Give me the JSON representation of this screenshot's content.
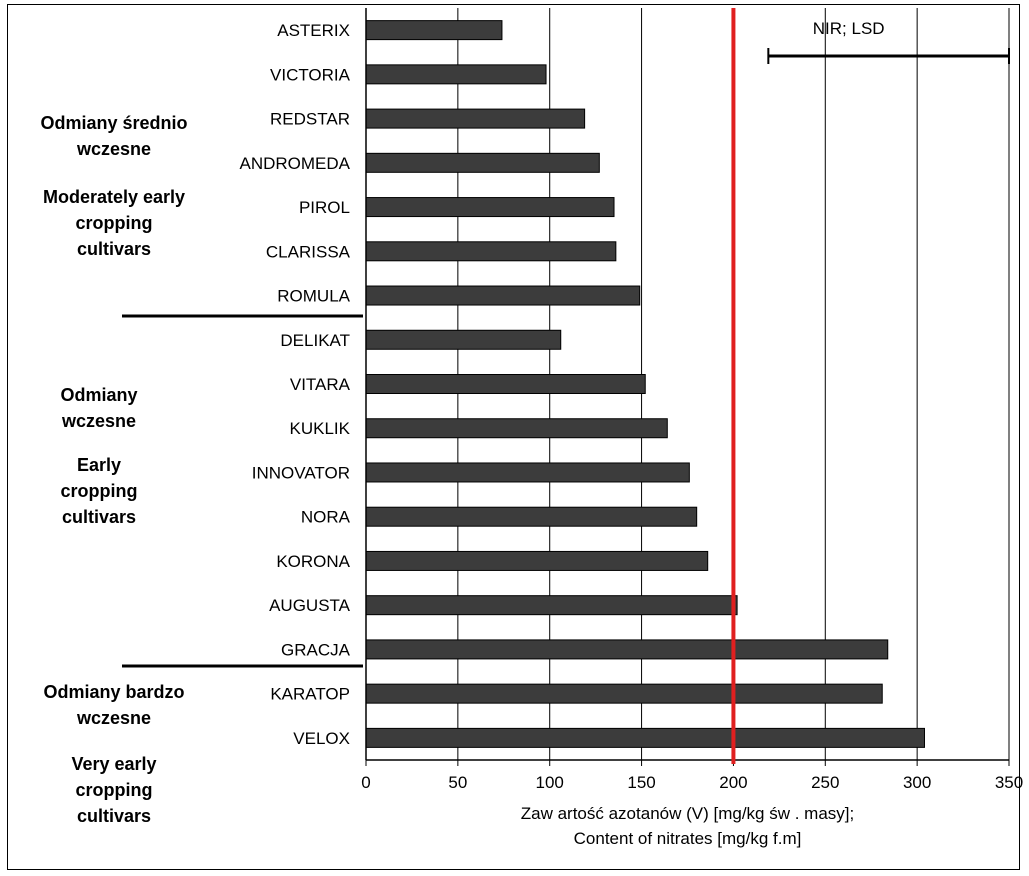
{
  "chart_data": {
    "type": "bar",
    "orientation": "horizontal",
    "categories": [
      "ASTERIX",
      "VICTORIA",
      "REDSTAR",
      "ANDROMEDA",
      "PIROL",
      "CLARISSA",
      "ROMULA",
      "DELIKAT",
      "VITARA",
      "KUKLIK",
      "INNOVATOR",
      "NORA",
      "KORONA",
      "AUGUSTA",
      "GRACJA",
      "KARATOP",
      "VELOX"
    ],
    "values": [
      74,
      98,
      119,
      127,
      135,
      136,
      149,
      106,
      152,
      164,
      176,
      180,
      186,
      202,
      284,
      281,
      304
    ],
    "xlim": [
      0,
      350
    ],
    "xticks": [
      "0",
      "50",
      "100",
      "150",
      "200",
      "250",
      "300",
      "350"
    ],
    "xlabel_line1": "Zaw artość azotanów (V) [mg/kg św . masy];",
    "xlabel_line2": "Content of nitrates [mg/kg f.m]",
    "reference_line": {
      "value": 200,
      "color": "#e02020"
    },
    "error_bar": {
      "label": "NIR; LSD",
      "from": 219,
      "to": 350
    },
    "bar_color": "#3c3c3c",
    "grid": "vertical",
    "groups": [
      {
        "lines": [
          "Odmiany średnio",
          "wczesne",
          "",
          "Moderately early",
          "cropping",
          "cultivars"
        ]
      },
      {
        "lines": [
          "Odmiany",
          "wczesne",
          "",
          "Early",
          "cropping",
          "cultivars"
        ]
      },
      {
        "lines": [
          "Odmiany bardzo",
          "wczesne",
          "",
          "Very early",
          "cropping",
          "cultivars"
        ]
      }
    ]
  }
}
